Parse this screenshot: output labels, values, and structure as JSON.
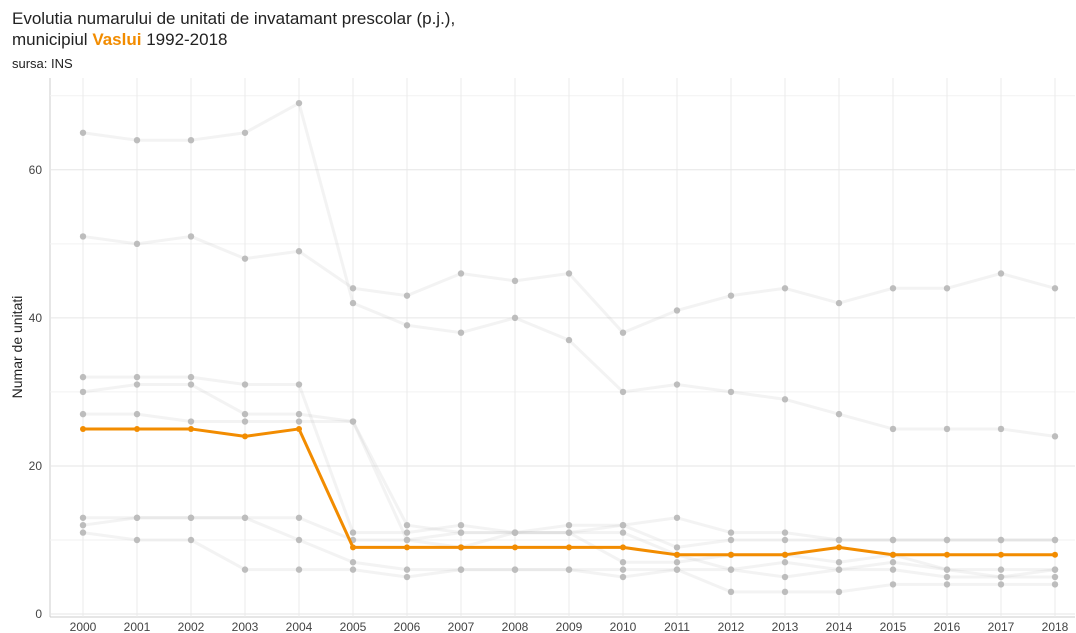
{
  "chart_data": {
    "type": "line",
    "title": [
      "Evolutia numarului de unitati de invatamant prescolar (p.j.),",
      "municipiul",
      "Vaslui",
      "1992-2018"
    ],
    "subtitle": "sursa: INS",
    "y_label": "Numar de unitati",
    "categories": [
      "2000",
      "2001",
      "2002",
      "2003",
      "2004",
      "2005",
      "2006",
      "2007",
      "2008",
      "2009",
      "2010",
      "2011",
      "2012",
      "2013",
      "2014",
      "2015",
      "2016",
      "2017",
      "2018"
    ],
    "ylim": [
      -0.4,
      72.4
    ],
    "yticks": [
      0,
      20,
      40,
      60
    ],
    "minor_yticks": [
      10,
      30,
      50,
      70
    ],
    "grid": true,
    "series": [
      {
        "color": "#bdbdbd",
        "values": [
          65,
          64,
          64,
          65,
          69,
          42,
          39,
          38,
          40,
          37,
          30,
          31,
          30,
          29,
          27,
          25,
          25,
          25,
          24
        ]
      },
      {
        "color": "#bdbdbd",
        "values": [
          51,
          50,
          51,
          48,
          49,
          44,
          43,
          46,
          45,
          46,
          38,
          41,
          43,
          44,
          42,
          44,
          44,
          46,
          44
        ]
      },
      {
        "color": "#bdbdbd",
        "values": [
          32,
          32,
          32,
          31,
          31,
          11,
          11,
          12,
          11,
          11,
          12,
          13,
          11,
          11,
          10,
          10,
          10,
          10,
          10
        ]
      },
      {
        "color": "#bdbdbd",
        "values": [
          30,
          31,
          31,
          27,
          27,
          26,
          12,
          11,
          11,
          12,
          12,
          9,
          10,
          10,
          10,
          10,
          10,
          10,
          10
        ]
      },
      {
        "color": "#bdbdbd",
        "values": [
          27,
          27,
          26,
          26,
          26,
          26,
          10,
          11,
          11,
          11,
          11,
          8,
          6,
          7,
          6,
          7,
          6,
          6,
          6
        ]
      },
      {
        "color": "#bdbdbd",
        "values": [
          13,
          13,
          13,
          13,
          13,
          10,
          10,
          9,
          11,
          11,
          7,
          7,
          8,
          8,
          7,
          8,
          6,
          5,
          6
        ]
      },
      {
        "color": "#bdbdbd",
        "values": [
          12,
          13,
          13,
          13,
          10,
          7,
          6,
          6,
          6,
          6,
          6,
          6,
          6,
          5,
          6,
          6,
          5,
          5,
          5
        ]
      },
      {
        "color": "#bdbdbd",
        "values": [
          11,
          10,
          10,
          6,
          6,
          6,
          5,
          6,
          6,
          6,
          5,
          6,
          3,
          3,
          3,
          4,
          4,
          4,
          4
        ]
      },
      {
        "color": "#f28c00",
        "highlight": true,
        "values": [
          25,
          25,
          25,
          24,
          25,
          9,
          9,
          9,
          9,
          9,
          9,
          8,
          8,
          8,
          9,
          8,
          8,
          8,
          8
        ]
      }
    ]
  }
}
